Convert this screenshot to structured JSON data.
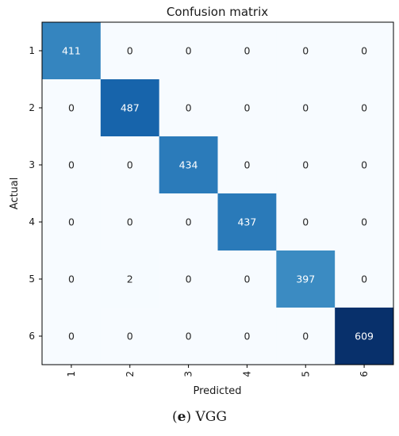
{
  "chart_data": {
    "type": "heatmap",
    "title": "Confusion matrix",
    "xlabel": "Predicted",
    "ylabel": "Actual",
    "x_categories": [
      "1",
      "2",
      "3",
      "4",
      "5",
      "6"
    ],
    "y_categories": [
      "1",
      "2",
      "3",
      "4",
      "5",
      "6"
    ],
    "values": [
      [
        411,
        0,
        0,
        0,
        0,
        0
      ],
      [
        0,
        487,
        0,
        0,
        0,
        0
      ],
      [
        0,
        0,
        434,
        0,
        0,
        0
      ],
      [
        0,
        0,
        0,
        437,
        0,
        0
      ],
      [
        0,
        2,
        0,
        0,
        397,
        0
      ],
      [
        0,
        0,
        0,
        0,
        0,
        609
      ]
    ],
    "colormap": "Blues",
    "vmin": 0,
    "vmax": 609,
    "x_tick_rotation": "vertical",
    "grid": false,
    "legend": "none"
  },
  "caption": {
    "letter": "e",
    "text": "VGG"
  },
  "colors": {
    "low": "#f7fbff",
    "high": "#08306b",
    "text_light": "#ffffff",
    "text_dark": "#262626",
    "frame": "#000000"
  }
}
